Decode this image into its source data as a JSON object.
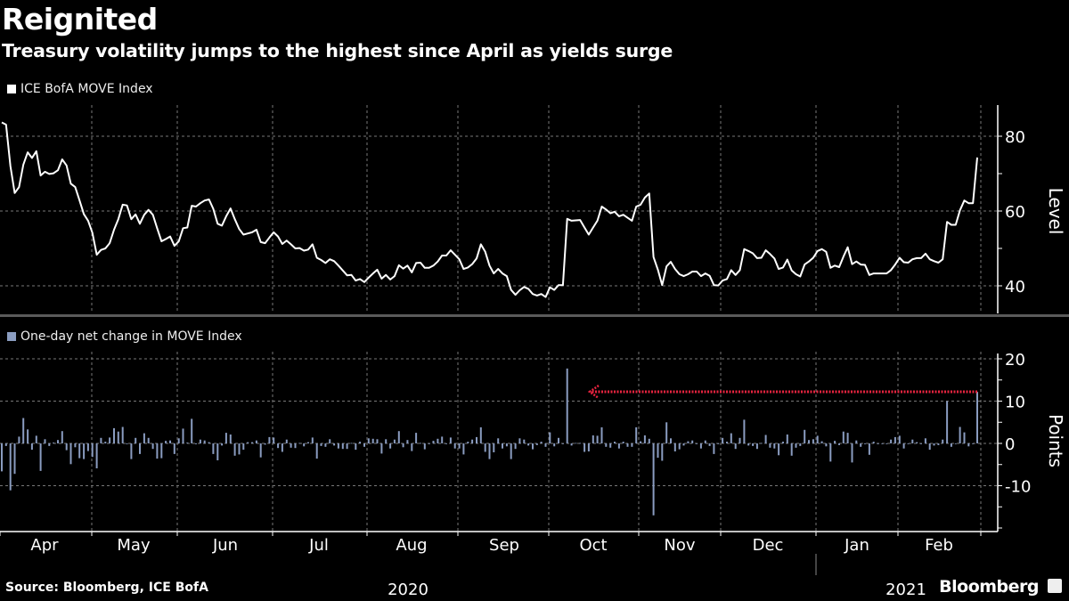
{
  "header": {
    "title": "Reignited",
    "subtitle": "Treasury volatility jumps to the highest since April as yields surge"
  },
  "footer": {
    "source": "Source: Bloomberg, ICE BofA",
    "brand": "Bloomberg"
  },
  "chart_data": [
    {
      "type": "line",
      "series": [
        {
          "name": "ICE BofA MOVE Index",
          "color": "#ffffff",
          "values": [
            83.7,
            83.1,
            72.0,
            64.8,
            66.4,
            72.4,
            75.7,
            74.2,
            76.0,
            69.5,
            70.5,
            69.9,
            70.1,
            70.9,
            73.8,
            72.2,
            67.3,
            66.4,
            62.9,
            59.2,
            57.4,
            54.2,
            48.3,
            49.6,
            50.0,
            51.4,
            55.0,
            57.8,
            61.7,
            61.5,
            57.8,
            59.1,
            56.6,
            59.0,
            60.3,
            59.0,
            55.4,
            51.9,
            52.5,
            53.2,
            50.7,
            51.9,
            55.4,
            55.6,
            61.4,
            61.2,
            62.1,
            62.8,
            63.1,
            60.6,
            56.6,
            56.1,
            58.6,
            60.7,
            57.8,
            55.2,
            53.7,
            54.0,
            54.3,
            55.0,
            51.7,
            51.4,
            52.9,
            54.3,
            53.2,
            51.2,
            52.1,
            51.1,
            50.0,
            50.1,
            49.4,
            49.7,
            51.1,
            47.5,
            46.9,
            46.1,
            47.1,
            46.6,
            45.4,
            44.1,
            42.8,
            42.9,
            41.4,
            41.8,
            41.0,
            42.2,
            43.3,
            44.3,
            41.9,
            42.9,
            41.7,
            42.6,
            45.5,
            44.6,
            45.4,
            43.6,
            46.1,
            46.2,
            44.8,
            44.8,
            45.4,
            46.5,
            48.1,
            48.1,
            49.5,
            48.3,
            47.1,
            44.5,
            44.9,
            45.8,
            47.3,
            51.1,
            49.1,
            45.4,
            43.3,
            44.5,
            43.3,
            42.6,
            38.9,
            37.6,
            38.8,
            39.7,
            39.2,
            37.8,
            37.4,
            37.8,
            37.0,
            39.6,
            38.9,
            40.2,
            40.2,
            57.9,
            57.4,
            57.5,
            57.6,
            55.6,
            53.7,
            55.6,
            57.4,
            61.2,
            60.4,
            59.4,
            59.8,
            58.6,
            59.0,
            58.2,
            57.4,
            61.2,
            61.7,
            63.6,
            64.7,
            47.7,
            44.3,
            40.2,
            45.2,
            46.4,
            44.5,
            43.1,
            42.6,
            43.1,
            43.8,
            43.8,
            42.6,
            43.3,
            42.7,
            40.2,
            40.1,
            41.4,
            41.8,
            44.2,
            42.9,
            44.2,
            49.8,
            49.3,
            48.7,
            47.4,
            47.5,
            49.5,
            48.5,
            47.3,
            44.5,
            44.9,
            47.0,
            44.1,
            43.1,
            42.5,
            45.7,
            46.5,
            47.5,
            49.3,
            49.8,
            49.1,
            44.8,
            45.4,
            45.0,
            47.8,
            50.3,
            45.8,
            46.5,
            45.7,
            45.6,
            42.9,
            43.3,
            43.3,
            43.3,
            43.3,
            44.2,
            45.7,
            47.5,
            46.3,
            46.2,
            47.1,
            47.4,
            47.4,
            48.6,
            47.1,
            46.6,
            46.2,
            47.1,
            57.1,
            56.3,
            56.3,
            60.2,
            62.8,
            62.1,
            62.1,
            74.3
          ]
        }
      ],
      "ylabel": "Level",
      "yticks": [
        40,
        60,
        80
      ],
      "ylim": [
        32,
        88
      ],
      "y_axis_side": "right",
      "grid": true
    },
    {
      "type": "bar",
      "series": [
        {
          "name": "One-day net change in MOVE Index",
          "color": "#8a9cc0",
          "values": [
            -6.6,
            -0.6,
            -11.1,
            -7.2,
            1.6,
            6.0,
            3.3,
            -1.5,
            1.8,
            -6.5,
            1.0,
            -0.6,
            0.2,
            0.8,
            2.9,
            -1.6,
            -4.9,
            -0.9,
            -3.5,
            -3.7,
            -1.8,
            -3.2,
            -5.9,
            1.3,
            0.4,
            1.4,
            3.6,
            2.8,
            3.9,
            -0.2,
            -3.7,
            1.3,
            -2.5,
            2.4,
            1.3,
            -1.3,
            -3.6,
            -3.5,
            0.6,
            0.7,
            -2.5,
            1.2,
            3.5,
            0.2,
            5.8,
            -0.2,
            0.9,
            0.7,
            0.3,
            -2.5,
            -4.0,
            -0.5,
            2.5,
            2.1,
            -2.9,
            -2.6,
            -1.5,
            0.3,
            0.3,
            0.7,
            -3.3,
            -0.3,
            1.5,
            1.4,
            -1.1,
            -2.0,
            0.9,
            -1.0,
            -1.1,
            0.1,
            -0.7,
            0.3,
            1.4,
            -3.6,
            -0.6,
            -0.8,
            1.0,
            -0.5,
            -1.2,
            -1.3,
            -1.3,
            0.1,
            -1.5,
            0.4,
            -0.8,
            1.2,
            1.1,
            1.0,
            -2.4,
            1.0,
            -1.2,
            0.9,
            2.9,
            -0.9,
            0.8,
            -1.8,
            2.5,
            0.1,
            -1.4,
            0.0,
            0.6,
            1.1,
            1.6,
            0.0,
            1.4,
            -1.2,
            -1.2,
            -2.6,
            0.4,
            0.9,
            1.5,
            3.8,
            -2.0,
            -3.7,
            -2.1,
            1.2,
            -1.2,
            -0.7,
            -3.7,
            -1.3,
            1.2,
            0.9,
            -0.5,
            -1.4,
            -0.4,
            0.4,
            -0.8,
            2.6,
            -0.7,
            1.3,
            0.0,
            17.7,
            -0.5,
            0.1,
            0.1,
            -2.0,
            -1.9,
            1.9,
            1.8,
            3.8,
            -0.8,
            -1.0,
            0.4,
            -1.2,
            0.4,
            -0.8,
            -0.8,
            3.8,
            0.5,
            1.9,
            1.1,
            -17.0,
            -3.4,
            -4.1,
            5.0,
            1.2,
            -1.9,
            -1.4,
            -0.5,
            0.5,
            0.7,
            0.0,
            -1.2,
            0.7,
            -0.6,
            -2.5,
            -0.1,
            1.3,
            0.4,
            2.4,
            -1.3,
            1.3,
            5.6,
            -0.5,
            -0.6,
            -1.3,
            0.1,
            2.0,
            -1.0,
            -1.2,
            -2.8,
            0.4,
            2.1,
            -2.9,
            -1.0,
            -0.6,
            3.2,
            0.8,
            1.0,
            1.8,
            0.5,
            -0.7,
            -4.3,
            0.6,
            -0.4,
            2.8,
            2.5,
            -4.5,
            0.7,
            -0.8,
            -0.1,
            -2.7,
            0.4,
            0.0,
            0.0,
            0.0,
            0.9,
            1.5,
            1.8,
            -1.2,
            -0.1,
            0.9,
            0.3,
            0.0,
            1.2,
            -1.5,
            -0.5,
            -0.4,
            0.9,
            10.0,
            -0.8,
            0.0,
            3.9,
            2.6,
            -0.7,
            0.0,
            12.2
          ]
        }
      ],
      "ylabel": "Points",
      "yticks": [
        -10,
        0,
        10,
        20
      ],
      "ylim": [
        -20,
        22
      ],
      "y_axis_side": "right",
      "grid": true,
      "annotation": {
        "type": "dotted-arrow",
        "color": "#e8233f",
        "level": 12.2,
        "points_to": "largest prior jump since early October"
      }
    }
  ],
  "x_axis": {
    "months": [
      "Apr",
      "May",
      "Jun",
      "Jul",
      "Aug",
      "Sep",
      "Oct",
      "Nov",
      "Dec",
      "Jan",
      "Feb"
    ],
    "years": [
      "2020",
      "2021"
    ]
  }
}
